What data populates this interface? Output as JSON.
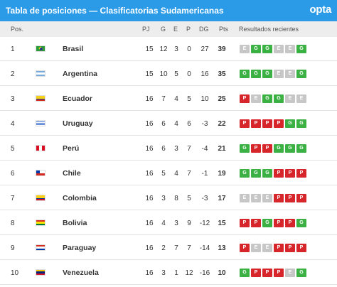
{
  "header": {
    "title": "Tabla de posiciones — Clasificatorias Sudamericanas",
    "logo": "opta"
  },
  "columns": {
    "pos": "Pos.",
    "pj": "PJ",
    "g": "G",
    "e": "E",
    "p": "P",
    "dg": "DG",
    "pts": "Pts",
    "results": "Resultados recientes"
  },
  "rows": [
    {
      "pos": "1",
      "team": "Brasil",
      "flag": "brazil-flag-icon",
      "pj": "15",
      "g": "12",
      "e": "3",
      "p": "0",
      "dg": "27",
      "pts": "39",
      "results": [
        "E",
        "G",
        "G",
        "E",
        "E",
        "G"
      ]
    },
    {
      "pos": "2",
      "team": "Argentina",
      "flag": "argentina-flag-icon",
      "pj": "15",
      "g": "10",
      "e": "5",
      "p": "0",
      "dg": "16",
      "pts": "35",
      "results": [
        "G",
        "G",
        "G",
        "E",
        "E",
        "G"
      ]
    },
    {
      "pos": "3",
      "team": "Ecuador",
      "flag": "ecuador-flag-icon",
      "pj": "16",
      "g": "7",
      "e": "4",
      "p": "5",
      "dg": "10",
      "pts": "25",
      "results": [
        "P",
        "E",
        "G",
        "G",
        "E",
        "E"
      ]
    },
    {
      "pos": "4",
      "team": "Uruguay",
      "flag": "uruguay-flag-icon",
      "pj": "16",
      "g": "6",
      "e": "4",
      "p": "6",
      "dg": "-3",
      "pts": "22",
      "results": [
        "P",
        "P",
        "P",
        "P",
        "G",
        "G"
      ]
    },
    {
      "pos": "5",
      "team": "Perú",
      "flag": "peru-flag-icon",
      "pj": "16",
      "g": "6",
      "e": "3",
      "p": "7",
      "dg": "-4",
      "pts": "21",
      "results": [
        "G",
        "P",
        "P",
        "G",
        "G",
        "G"
      ]
    },
    {
      "pos": "6",
      "team": "Chile",
      "flag": "chile-flag-icon",
      "pj": "16",
      "g": "5",
      "e": "4",
      "p": "7",
      "dg": "-1",
      "pts": "19",
      "results": [
        "G",
        "G",
        "G",
        "P",
        "P",
        "P"
      ]
    },
    {
      "pos": "7",
      "team": "Colombia",
      "flag": "colombia-flag-icon",
      "pj": "16",
      "g": "3",
      "e": "8",
      "p": "5",
      "dg": "-3",
      "pts": "17",
      "results": [
        "E",
        "E",
        "E",
        "P",
        "P",
        "P"
      ]
    },
    {
      "pos": "8",
      "team": "Bolivia",
      "flag": "bolivia-flag-icon",
      "pj": "16",
      "g": "4",
      "e": "3",
      "p": "9",
      "dg": "-12",
      "pts": "15",
      "results": [
        "P",
        "P",
        "G",
        "P",
        "P",
        "G"
      ]
    },
    {
      "pos": "9",
      "team": "Paraguay",
      "flag": "paraguay-flag-icon",
      "pj": "16",
      "g": "2",
      "e": "7",
      "p": "7",
      "dg": "-14",
      "pts": "13",
      "results": [
        "P",
        "E",
        "E",
        "P",
        "P",
        "P"
      ]
    },
    {
      "pos": "10",
      "team": "Venezuela",
      "flag": "venezuela-flag-icon",
      "pj": "16",
      "g": "3",
      "e": "1",
      "p": "12",
      "dg": "-16",
      "pts": "10",
      "results": [
        "G",
        "P",
        "P",
        "P",
        "E",
        "G"
      ]
    }
  ]
}
